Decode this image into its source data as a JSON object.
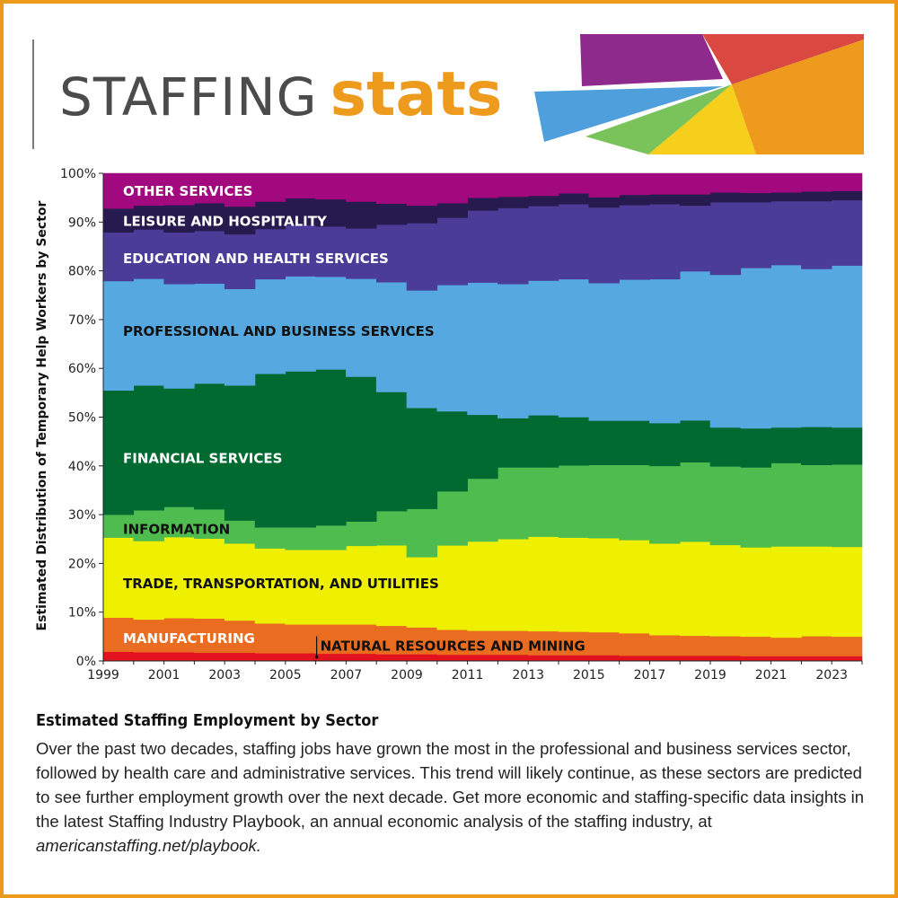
{
  "header": {
    "title_word1": "STAFFING",
    "title_word2": "stats"
  },
  "colors": {
    "accent": "#ee9a1d",
    "decoration": [
      "#8e2a8c",
      "#d94841",
      "#4f9fdc",
      "#7ac25a",
      "#f5cf1c",
      "#ee9a1d"
    ]
  },
  "caption": {
    "title": "Estimated Staffing Employment by Sector",
    "body": "Over the past two decades, staffing jobs have grown the most in the professional and business services sector, followed by health care and administrative services. This trend will likely continue, as these sectors are predicted to see further employment growth over the next decade. Get more economic and staffing-specific data insights in the latest Staffing Industry Playbook, an annual economic analysis of the staffing industry, at",
    "link": "americanstaffing.net/playbook."
  },
  "chart_data": {
    "type": "area",
    "stacked": true,
    "step": true,
    "ylabel": "Estimated Distribution of Temporary Help Workers by Sector",
    "xlabel": "",
    "ylim": [
      0,
      100
    ],
    "yticks": [
      "0%",
      "10%",
      "20%",
      "30%",
      "40%",
      "50%",
      "60%",
      "70%",
      "80%",
      "90%",
      "100%"
    ],
    "xticks": [
      "1999",
      "2001",
      "2003",
      "2005",
      "2007",
      "2009",
      "2011",
      "2013",
      "2015",
      "2017",
      "2019",
      "2021",
      "2023"
    ],
    "x": [
      1999,
      2000,
      2001,
      2002,
      2003,
      2004,
      2005,
      2006,
      2007,
      2008,
      2009,
      2010,
      2011,
      2012,
      2013,
      2014,
      2015,
      2016,
      2017,
      2018,
      2019,
      2020,
      2021,
      2022,
      2023
    ],
    "series": [
      {
        "name": "NATURAL RESOURCES AND MINING",
        "color": "#e2131e",
        "values": [
          1.9,
          1.8,
          1.8,
          1.7,
          1.7,
          1.6,
          1.6,
          1.5,
          1.5,
          1.4,
          1.4,
          1.3,
          1.3,
          1.3,
          1.2,
          1.2,
          1.2,
          1.1,
          1.1,
          1.1,
          1.1,
          1.0,
          1.0,
          1.0,
          1.0
        ]
      },
      {
        "name": "MANUFACTURING",
        "color": "#e96c20",
        "values": [
          7.0,
          6.7,
          7.0,
          7.0,
          6.6,
          6.1,
          5.9,
          6.0,
          6.0,
          5.8,
          5.5,
          5.1,
          4.9,
          4.9,
          4.9,
          4.8,
          4.7,
          4.6,
          4.2,
          4.1,
          4.0,
          4.0,
          3.8,
          4.1,
          4.0
        ]
      },
      {
        "name": "TRADE, TRANSPORTATION, AND UTILITIES",
        "color": "#eef000",
        "values": [
          16.4,
          16.1,
          16.6,
          16.4,
          15.8,
          15.4,
          15.3,
          15.3,
          16.1,
          16.5,
          14.4,
          17.3,
          18.3,
          18.8,
          19.4,
          19.3,
          19.3,
          19.1,
          18.8,
          19.3,
          18.7,
          18.3,
          18.7,
          18.4,
          18.4
        ]
      },
      {
        "name": "INFORMATION",
        "color": "#4fbc50",
        "values": [
          4.7,
          6.3,
          6.2,
          6.0,
          4.7,
          4.3,
          4.6,
          5.0,
          5.0,
          7.0,
          9.9,
          11.1,
          12.9,
          14.7,
          14.2,
          14.8,
          15.0,
          15.4,
          15.9,
          16.3,
          16.1,
          16.4,
          17.1,
          16.7,
          16.9
        ]
      },
      {
        "name": "FINANCIAL SERVICES",
        "color": "#006a30",
        "values": [
          25.5,
          25.6,
          24.3,
          25.8,
          27.7,
          31.5,
          32.0,
          32.0,
          29.7,
          24.4,
          20.7,
          16.4,
          13.1,
          10.1,
          10.7,
          9.9,
          9.1,
          9.1,
          8.8,
          8.6,
          8.0,
          8.0,
          7.3,
          7.8,
          7.6
        ]
      },
      {
        "name": "PROFESSIONAL AND BUSINESS SERVICES",
        "color": "#56a9e0",
        "values": [
          22.4,
          21.9,
          21.4,
          20.5,
          19.8,
          19.4,
          19.5,
          19.0,
          20.1,
          22.5,
          24.1,
          25.9,
          27.1,
          27.5,
          27.6,
          28.3,
          28.2,
          28.9,
          29.5,
          30.6,
          31.3,
          32.9,
          33.3,
          32.4,
          33.2
        ]
      },
      {
        "name": "EDUCATION AND HEALTH SERVICES",
        "color": "#4b3d97",
        "values": [
          10.0,
          10.1,
          10.6,
          10.8,
          11.2,
          10.3,
          10.5,
          10.3,
          10.3,
          11.8,
          13.8,
          13.8,
          14.8,
          15.6,
          15.3,
          15.4,
          15.5,
          15.3,
          15.4,
          13.5,
          14.9,
          13.5,
          13.1,
          13.9,
          13.4
        ]
      },
      {
        "name": "LEISURE AND HOSPITALITY",
        "color": "#261a4e",
        "values": [
          4.9,
          4.9,
          5.6,
          5.7,
          5.7,
          5.6,
          5.5,
          5.6,
          5.5,
          4.3,
          3.6,
          3.0,
          2.6,
          2.3,
          2.1,
          2.2,
          2.1,
          2.1,
          2.0,
          2.3,
          2.0,
          1.9,
          1.8,
          2.0,
          1.9
        ]
      },
      {
        "name": "OTHER SERVICES",
        "color": "#a2097e",
        "values": [
          7.2,
          6.6,
          6.5,
          6.1,
          6.8,
          5.8,
          5.1,
          5.3,
          5.8,
          6.2,
          6.6,
          6.1,
          5.0,
          4.8,
          4.6,
          4.1,
          4.9,
          4.4,
          4.3,
          4.3,
          3.9,
          4.0,
          3.9,
          3.7,
          3.6
        ]
      }
    ]
  },
  "labels": [
    {
      "series": 8,
      "text": "OTHER SERVICES",
      "color": "#ffffff",
      "y": 96.5
    },
    {
      "series": 7,
      "text": "LEISURE AND HOSPITALITY",
      "color": "#ffffff",
      "y": 90.3
    },
    {
      "series": 6,
      "text": "EDUCATION AND HEALTH SERVICES",
      "color": "#ffffff",
      "y": 82.7
    },
    {
      "series": 5,
      "text": "PROFESSIONAL AND BUSINESS SERVICES",
      "color": "#111111",
      "y": 67.8
    },
    {
      "series": 4,
      "text": "FINANCIAL SERVICES",
      "color": "#ffffff",
      "y": 41.7
    },
    {
      "series": 3,
      "text": "INFORMATION",
      "color": "#111111",
      "y": 27.2
    },
    {
      "series": 2,
      "text": "TRADE, TRANSPORTATION, AND UTILITIES",
      "color": "#111111",
      "y": 16.0
    },
    {
      "series": 1,
      "text": "MANUFACTURING",
      "color": "#ffffff",
      "y": 4.8
    },
    {
      "series": 0,
      "text": "NATURAL RESOURCES AND MINING",
      "color": "#111111",
      "y": 3.2,
      "pointer_year": 2006
    }
  ]
}
